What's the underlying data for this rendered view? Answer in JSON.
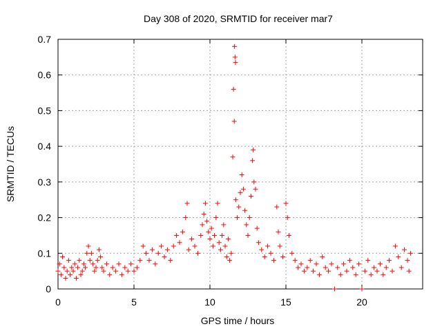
{
  "chart_data": {
    "type": "scatter",
    "title": "Day 308 of 2020, SRMTID for receiver mar7",
    "xlabel": "GPS time / hours",
    "ylabel": "SRMTID / TECUs",
    "xlim": [
      0,
      24
    ],
    "ylim": [
      0,
      0.7
    ],
    "xticks": [
      0,
      5,
      10,
      15,
      20
    ],
    "xtick_labels": [
      "0",
      "5",
      "10",
      "15",
      "20"
    ],
    "yticks": [
      0,
      0.1,
      0.2,
      0.3,
      0.4,
      0.5,
      0.6,
      0.7
    ],
    "ytick_labels": [
      "0",
      "0.1",
      "0.2",
      "0.3",
      "0.4",
      "0.5",
      "0.6",
      "0.7"
    ],
    "grid": true,
    "marker": "plus",
    "color": "#ff0000",
    "series": [
      {
        "name": "mar7",
        "points": [
          [
            0.0,
            0.05
          ],
          [
            0.1,
            0.07
          ],
          [
            0.2,
            0.04
          ],
          [
            0.3,
            0.09
          ],
          [
            0.4,
            0.06
          ],
          [
            0.5,
            0.03
          ],
          [
            0.6,
            0.05
          ],
          [
            0.7,
            0.08
          ],
          [
            0.8,
            0.04
          ],
          [
            0.9,
            0.06
          ],
          [
            1.0,
            0.05
          ],
          [
            1.1,
            0.07
          ],
          [
            1.2,
            0.03
          ],
          [
            1.3,
            0.06
          ],
          [
            1.4,
            0.08
          ],
          [
            1.5,
            0.04
          ],
          [
            1.6,
            0.05
          ],
          [
            1.7,
            0.07
          ],
          [
            1.8,
            0.06
          ],
          [
            1.9,
            0.1
          ],
          [
            2.0,
            0.12
          ],
          [
            2.1,
            0.08
          ],
          [
            2.2,
            0.1
          ],
          [
            2.3,
            0.07
          ],
          [
            2.4,
            0.05
          ],
          [
            2.5,
            0.06
          ],
          [
            2.6,
            0.08
          ],
          [
            2.7,
            0.11
          ],
          [
            2.8,
            0.09
          ],
          [
            2.9,
            0.06
          ],
          [
            3.0,
            0.05
          ],
          [
            3.2,
            0.07
          ],
          [
            3.4,
            0.04
          ],
          [
            3.6,
            0.06
          ],
          [
            3.8,
            0.05
          ],
          [
            4.0,
            0.07
          ],
          [
            4.2,
            0.04
          ],
          [
            4.4,
            0.06
          ],
          [
            4.6,
            0.05
          ],
          [
            4.8,
            0.07
          ],
          [
            5.0,
            0.05
          ],
          [
            5.2,
            0.06
          ],
          [
            5.4,
            0.08
          ],
          [
            5.6,
            0.12
          ],
          [
            5.8,
            0.1
          ],
          [
            6.0,
            0.08
          ],
          [
            6.2,
            0.11
          ],
          [
            6.4,
            0.07
          ],
          [
            6.6,
            0.1
          ],
          [
            6.8,
            0.12
          ],
          [
            7.0,
            0.09
          ],
          [
            7.2,
            0.11
          ],
          [
            7.4,
            0.08
          ],
          [
            7.6,
            0.12
          ],
          [
            7.8,
            0.15
          ],
          [
            8.0,
            0.13
          ],
          [
            8.2,
            0.16
          ],
          [
            8.4,
            0.2
          ],
          [
            8.5,
            0.24
          ],
          [
            8.6,
            0.11
          ],
          [
            8.8,
            0.14
          ],
          [
            9.0,
            0.12
          ],
          [
            9.2,
            0.1
          ],
          [
            9.4,
            0.15
          ],
          [
            9.5,
            0.18
          ],
          [
            9.6,
            0.21
          ],
          [
            9.7,
            0.24
          ],
          [
            9.8,
            0.19
          ],
          [
            9.9,
            0.16
          ],
          [
            10.0,
            0.14
          ],
          [
            10.1,
            0.17
          ],
          [
            10.2,
            0.12
          ],
          [
            10.3,
            0.15
          ],
          [
            10.4,
            0.2
          ],
          [
            10.5,
            0.24
          ],
          [
            10.6,
            0.13
          ],
          [
            10.7,
            0.11
          ],
          [
            10.8,
            0.15
          ],
          [
            10.9,
            0.18
          ],
          [
            11.0,
            0.12
          ],
          [
            11.1,
            0.09
          ],
          [
            11.2,
            0.14
          ],
          [
            11.3,
            0.08
          ],
          [
            11.4,
            0.1
          ],
          [
            11.5,
            0.37
          ],
          [
            11.55,
            0.56
          ],
          [
            11.6,
            0.47
          ],
          [
            11.62,
            0.68
          ],
          [
            11.65,
            0.65
          ],
          [
            11.68,
            0.635
          ],
          [
            11.7,
            0.25
          ],
          [
            11.8,
            0.2
          ],
          [
            11.9,
            0.23
          ],
          [
            12.0,
            0.27
          ],
          [
            12.1,
            0.32
          ],
          [
            12.2,
            0.28
          ],
          [
            12.3,
            0.22
          ],
          [
            12.4,
            0.18
          ],
          [
            12.5,
            0.15
          ],
          [
            12.6,
            0.2
          ],
          [
            12.7,
            0.26
          ],
          [
            12.8,
            0.36
          ],
          [
            12.85,
            0.39
          ],
          [
            12.9,
            0.3
          ],
          [
            13.0,
            0.28
          ],
          [
            13.1,
            0.17
          ],
          [
            13.2,
            0.13
          ],
          [
            13.4,
            0.11
          ],
          [
            13.6,
            0.09
          ],
          [
            13.8,
            0.12
          ],
          [
            14.0,
            0.1
          ],
          [
            14.2,
            0.08
          ],
          [
            14.4,
            0.23
          ],
          [
            14.5,
            0.16
          ],
          [
            14.6,
            0.12
          ],
          [
            14.8,
            0.09
          ],
          [
            15.0,
            0.24
          ],
          [
            15.1,
            0.2
          ],
          [
            15.2,
            0.15
          ],
          [
            15.4,
            0.1
          ],
          [
            15.6,
            0.08
          ],
          [
            15.8,
            0.06
          ],
          [
            16.0,
            0.07
          ],
          [
            16.2,
            0.05
          ],
          [
            16.4,
            0.06
          ],
          [
            16.6,
            0.08
          ],
          [
            16.8,
            0.05
          ],
          [
            17.0,
            0.07
          ],
          [
            17.2,
            0.04
          ],
          [
            17.4,
            0.09
          ],
          [
            17.6,
            0.06
          ],
          [
            17.8,
            0.05
          ],
          [
            18.0,
            0.07
          ],
          [
            18.2,
            0.0
          ],
          [
            18.4,
            0.06
          ],
          [
            18.6,
            0.04
          ],
          [
            18.8,
            0.07
          ],
          [
            19.0,
            0.05
          ],
          [
            19.2,
            0.08
          ],
          [
            19.4,
            0.06
          ],
          [
            19.6,
            0.04
          ],
          [
            19.8,
            0.07
          ],
          [
            20.0,
            0.0
          ],
          [
            20.2,
            0.05
          ],
          [
            20.4,
            0.08
          ],
          [
            20.6,
            0.04
          ],
          [
            20.8,
            0.06
          ],
          [
            21.0,
            0.05
          ],
          [
            21.2,
            0.07
          ],
          [
            21.4,
            0.04
          ],
          [
            21.6,
            0.06
          ],
          [
            21.8,
            0.08
          ],
          [
            22.0,
            0.05
          ],
          [
            22.2,
            0.12
          ],
          [
            22.4,
            0.09
          ],
          [
            22.6,
            0.06
          ],
          [
            22.8,
            0.11
          ],
          [
            23.0,
            0.08
          ],
          [
            23.1,
            0.05
          ],
          [
            23.2,
            0.1
          ]
        ]
      }
    ]
  }
}
